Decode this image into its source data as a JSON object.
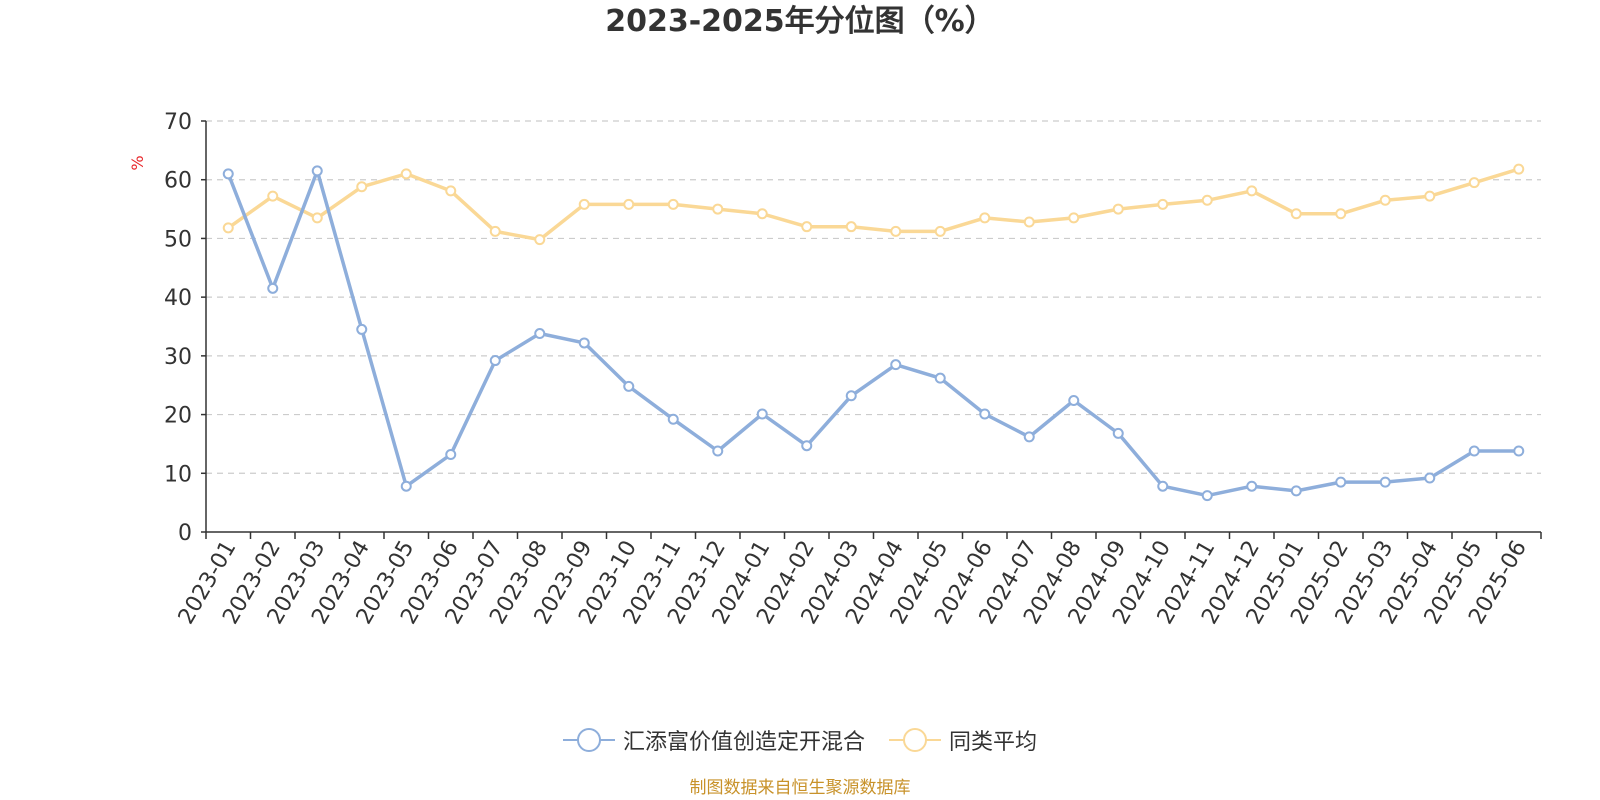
{
  "title": "2023-2025年分位图（%）",
  "source_note": "制图数据来自恒生聚源数据库",
  "colors": {
    "series1": "#8eaedb",
    "series2": "#fad896",
    "grid": "#cccccc",
    "axis": "#333333",
    "unit": "#e8262a",
    "source": "#c8922a"
  },
  "chart_data": {
    "type": "line",
    "title": "2023-2025年分位图（%）",
    "ylabel": "%",
    "xlabel": "",
    "ylim": [
      0,
      70
    ],
    "yticks": [
      0,
      10,
      20,
      30,
      40,
      50,
      60,
      70
    ],
    "grid": true,
    "legend_position": "bottom-center",
    "x": [
      "2023-01",
      "2023-02",
      "2023-03",
      "2023-04",
      "2023-05",
      "2023-06",
      "2023-07",
      "2023-08",
      "2023-09",
      "2023-10",
      "2023-11",
      "2023-12",
      "2024-01",
      "2024-02",
      "2024-03",
      "2024-04",
      "2024-05",
      "2024-06",
      "2024-07",
      "2024-08",
      "2024-09",
      "2024-10",
      "2024-11",
      "2024-12",
      "2025-01",
      "2025-02",
      "2025-03",
      "2025-04",
      "2025-05",
      "2025-06"
    ],
    "series": [
      {
        "name": "汇添富价值创造定开混合",
        "values": [
          61,
          41.5,
          61.5,
          34.5,
          7.8,
          13.2,
          29.2,
          33.8,
          32.2,
          24.8,
          19.2,
          13.8,
          20.1,
          14.7,
          23.2,
          28.5,
          26.2,
          20.1,
          16.2,
          22.4,
          16.8,
          7.8,
          6.2,
          7.8,
          7.0,
          8.5,
          8.5,
          9.2,
          13.8,
          13.8
        ]
      },
      {
        "name": "同类平均",
        "values": [
          51.8,
          57.2,
          53.5,
          58.8,
          61,
          58.1,
          51.2,
          49.8,
          55.8,
          55.8,
          55.8,
          55,
          54.2,
          52,
          52,
          51.2,
          51.2,
          53.5,
          52.8,
          53.5,
          55,
          55.8,
          56.5,
          58.1,
          54.2,
          54.2,
          56.5,
          57.2,
          59.5,
          61.8
        ]
      }
    ]
  }
}
